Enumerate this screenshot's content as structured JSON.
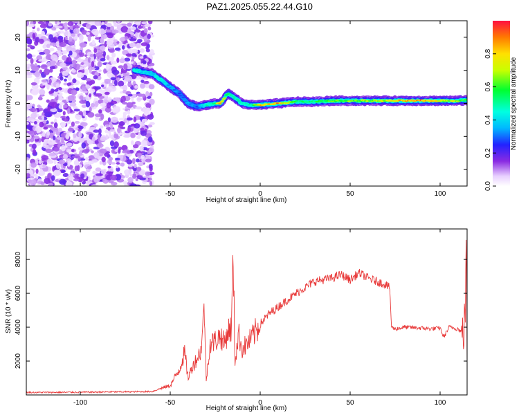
{
  "title": "PAZ1.2025.055.22.44.G10",
  "spectrogram": {
    "ylabel": "Frequency (Hz)",
    "xlabel": "Height of straight line (km)",
    "x_ticks": [
      -100,
      -50,
      0,
      50,
      100
    ],
    "y_ticks": [
      20,
      10,
      0,
      -10,
      -20
    ],
    "xlim": [
      -130,
      115
    ],
    "ylim": [
      -25,
      25
    ],
    "colorbar": {
      "label": "Normalized spectral amplitude",
      "ticks": [
        "0.0",
        "0.2",
        "0.4",
        "0.6",
        "0.8"
      ],
      "range": [
        0,
        1
      ]
    }
  },
  "chart_data": [
    {
      "type": "heatmap",
      "title": "PAZ1.2025.055.22.44.G10",
      "xlabel": "Height of straight line (km)",
      "ylabel": "Frequency (Hz)",
      "xlim": [
        -130,
        115
      ],
      "ylim": [
        -25,
        25
      ],
      "noise_region_x": [
        -130,
        -60
      ],
      "ridge": {
        "x": [
          -70,
          -65,
          -60,
          -55,
          -50,
          -45,
          -40,
          -35,
          -30,
          -25,
          -22,
          -18,
          -15,
          -10,
          -5,
          0,
          10,
          20,
          30,
          40,
          50,
          60,
          70,
          80,
          90,
          100,
          110,
          115
        ],
        "frequency": [
          10,
          9.5,
          9,
          7,
          5,
          3,
          0,
          -1,
          -0.5,
          0,
          0,
          3,
          2,
          0,
          -0.5,
          -0.5,
          0,
          0.5,
          0.5,
          0.8,
          0.8,
          0.8,
          0.8,
          0.8,
          0.8,
          0.8,
          0.8,
          1
        ],
        "amplitude": [
          0.45,
          0.4,
          0.4,
          0.45,
          0.35,
          0.3,
          0.35,
          0.3,
          0.45,
          0.6,
          0.85,
          0.5,
          0.5,
          0.45,
          0.5,
          0.8,
          0.85,
          0.55,
          0.55,
          0.6,
          0.65,
          0.7,
          0.7,
          0.85,
          0.9,
          0.75,
          0.7,
          0.55
        ]
      }
    },
    {
      "type": "line",
      "xlabel": "Height of straight line (km)",
      "ylabel": "SNR (10 * v/v)",
      "xlim": [
        -130,
        115
      ],
      "ylim": [
        0,
        9800
      ],
      "x_ticks": [
        -100,
        -50,
        0,
        50,
        100
      ],
      "y_ticks": [
        2000,
        4000,
        6000,
        8000
      ],
      "color": "#e83a3a",
      "x": [
        -130,
        -120,
        -100,
        -80,
        -60,
        -55,
        -50,
        -45,
        -42,
        -40,
        -38,
        -35,
        -33,
        -31,
        -30,
        -28,
        -25,
        -22,
        -20,
        -18,
        -16,
        -15,
        -14,
        -12,
        -10,
        -5,
        0,
        5,
        10,
        20,
        30,
        40,
        45,
        50,
        55,
        60,
        65,
        70,
        72,
        73,
        75,
        80,
        90,
        95,
        100,
        102,
        105,
        110,
        113,
        114,
        114.5,
        115
      ],
      "snr": [
        150,
        150,
        160,
        180,
        200,
        400,
        550,
        1500,
        2500,
        1000,
        1600,
        2200,
        2600,
        5100,
        800,
        3000,
        3200,
        3500,
        3000,
        3800,
        3900,
        8200,
        2000,
        3600,
        2700,
        3300,
        4200,
        4800,
        5200,
        6000,
        6700,
        6900,
        7100,
        6800,
        7200,
        6900,
        6700,
        6500,
        6300,
        4000,
        3900,
        4000,
        3950,
        3900,
        3950,
        3400,
        4000,
        3900,
        3600,
        5000,
        9800,
        1200
      ]
    }
  ]
}
